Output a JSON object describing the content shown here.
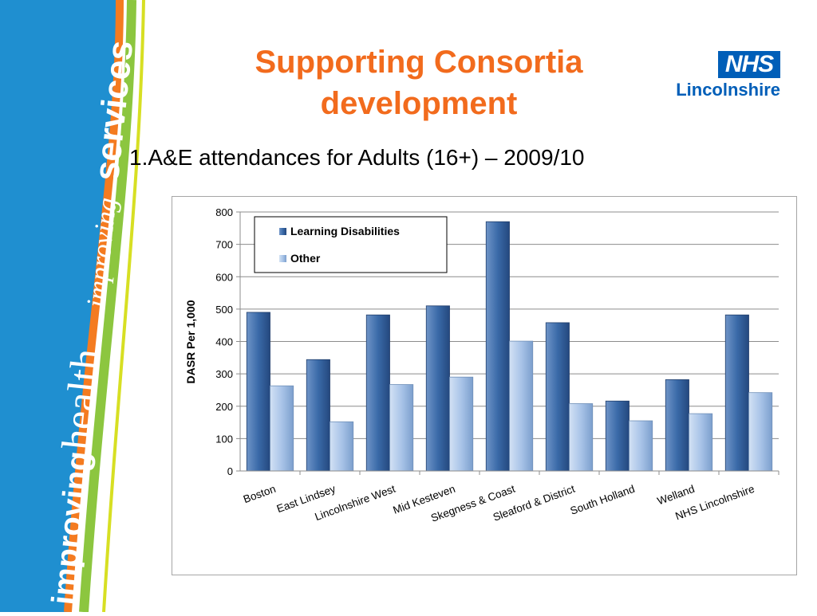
{
  "slide": {
    "title": "Supporting Consortia development",
    "subtitle": "1.A&E attendances for Adults (16+) – 2009/10"
  },
  "banner": {
    "text_line1": "improving",
    "text_line2": "health",
    "text_line3": "improving",
    "text_line4": "services",
    "colors": {
      "blue": "#1f8fd0",
      "green": "#8cc63f",
      "orange": "#f47b20",
      "yellow": "#d7df23"
    }
  },
  "logo": {
    "badge": "NHS",
    "region": "Lincolnshire",
    "color": "#005eb8"
  },
  "colors": {
    "title": "#f26b1d",
    "learning": "#3a6aa8",
    "other": "#a9c4e8"
  },
  "chart_data": {
    "type": "bar",
    "categories": [
      "Boston",
      "East Lindsey",
      "Lincolnshire West",
      "Mid Kesteven",
      "Skegness & Coast",
      "Sleaford & District",
      "South Holland",
      "Welland",
      "NHS Lincolnshire"
    ],
    "series": [
      {
        "name": "Learning Disabilities",
        "values": [
          490,
          344,
          482,
          510,
          770,
          458,
          216,
          282,
          482
        ]
      },
      {
        "name": "Other",
        "values": [
          263,
          152,
          267,
          290,
          401,
          208,
          155,
          177,
          242
        ]
      }
    ],
    "xlabel": "",
    "ylabel": "DASR Per 1,000",
    "ylim": [
      0,
      800
    ],
    "yticks": [
      "0",
      "100",
      "200",
      "300",
      "400",
      "500",
      "600",
      "700",
      "800"
    ],
    "grid": true,
    "legend": "top-left"
  }
}
